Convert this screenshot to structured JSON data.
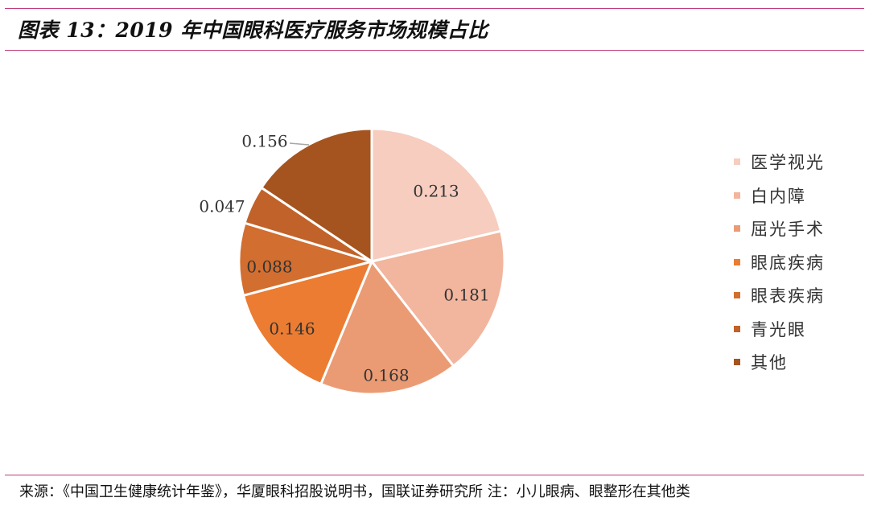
{
  "figure": {
    "title": "图表 13：2019 年中国眼科医疗服务市场规模占比",
    "source": "来源：《中国卫生健康统计年鉴》，华厦眼科招股说明书，国联证券研究所 注：小儿眼病、眼整形在其他类"
  },
  "chart_data": {
    "type": "pie",
    "title": "",
    "categories": [
      "医学视光",
      "白内障",
      "屈光手术",
      "眼底疾病",
      "眼表疾病",
      "青光眼",
      "其他"
    ],
    "values": [
      0.213,
      0.181,
      0.168,
      0.146,
      0.088,
      0.047,
      0.156
    ],
    "labels": [
      "0.213",
      "0.181",
      "0.168",
      "0.146",
      "0.088",
      "0.047",
      "0.156"
    ],
    "colors": [
      "#f6cdbf",
      "#f2b59d",
      "#eb9b74",
      "#eb7c32",
      "#d26e2f",
      "#c1622a",
      "#a5541f"
    ],
    "start": "12 o'clock",
    "direction": "clockwise",
    "legend": "right"
  }
}
